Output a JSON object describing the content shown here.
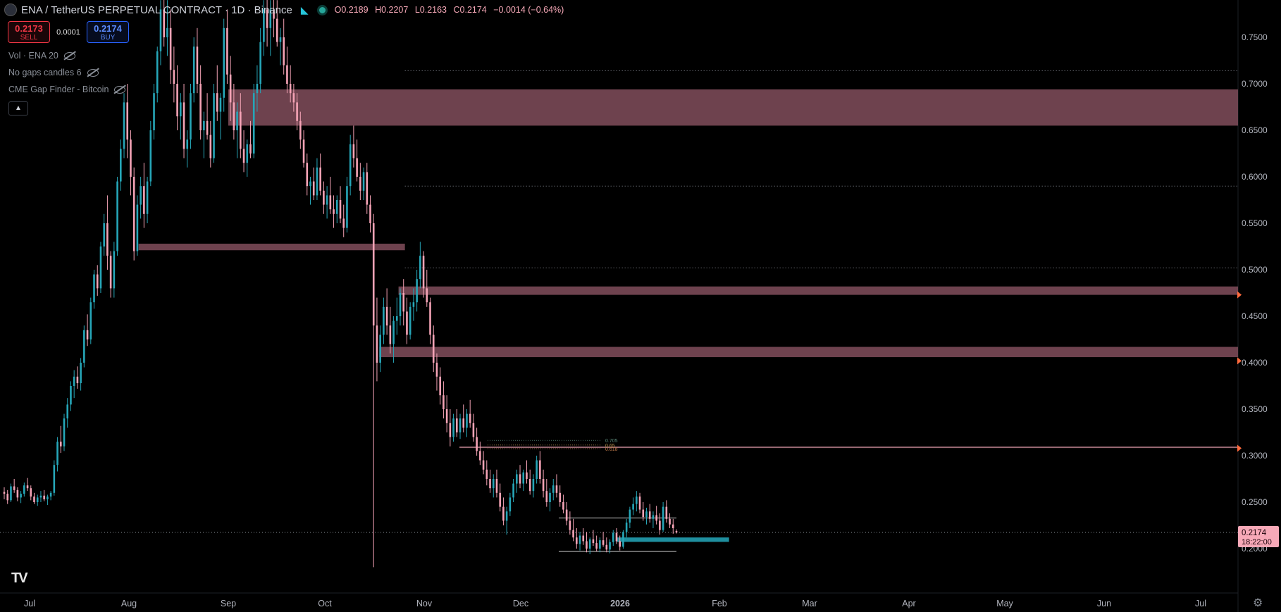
{
  "header": {
    "title": "ENA / TetherUS PERPETUAL CONTRACT · 1D · Binance",
    "ohlc": {
      "open": "O0.2189",
      "high": "H0.2207",
      "low": "L0.2163",
      "close": "C0.2174",
      "change": "−0.0014 (−0.64%)"
    }
  },
  "trade": {
    "sell_price": "0.2173",
    "sell_label": "SELL",
    "spread": "0.0001",
    "buy_price": "0.2174",
    "buy_label": "BUY"
  },
  "indicators": [
    "Vol · ENA 20",
    "No gaps candles 6",
    "CME Gap Finder - Bitcoin"
  ],
  "price_label": {
    "price": "0.2174",
    "countdown": "18:22:00"
  },
  "colors": {
    "up": "#26a6b8",
    "down": "#f5a3b6",
    "zone": "#7a4956",
    "teal_zone": "#1f8f9f",
    "orange": "#ff6a3d"
  },
  "chart_data": {
    "type": "candlestick",
    "x_labels": [
      "Jul",
      "Aug",
      "Sep",
      "Oct",
      "Nov",
      "Dec",
      "2026",
      "Feb",
      "Mar",
      "Apr",
      "May",
      "Jun",
      "Jul"
    ],
    "y_ticks": [
      "0.7500",
      "0.7000",
      "0.6500",
      "0.6000",
      "0.5500",
      "0.5000",
      "0.4500",
      "0.4000",
      "0.3500",
      "0.3000",
      "0.2500",
      "0.2000"
    ],
    "ylim": [
      0.18,
      0.79
    ],
    "zones": [
      {
        "from": "Sep 1",
        "to": "Jul 31",
        "low": 0.655,
        "high": 0.694
      },
      {
        "from": "Aug 4",
        "to": "Oct 26",
        "low": 0.521,
        "high": 0.528
      },
      {
        "from": "Oct 24",
        "to": "Jul 31",
        "low": 0.473,
        "high": 0.482
      },
      {
        "from": "Oct 18",
        "to": "Jul 31",
        "low": 0.406,
        "high": 0.417
      }
    ],
    "teal_zone": {
      "from": "Dec 31",
      "to": "Feb 4",
      "low": 0.208,
      "high": 0.212
    },
    "levels": [
      {
        "value": 0.714,
        "from": "Oct 26",
        "style": "dotted"
      },
      {
        "value": 0.59,
        "from": "Oct 26",
        "style": "dotted"
      },
      {
        "value": 0.502,
        "from": "Oct 26",
        "style": "dotted"
      },
      {
        "value": 0.309,
        "from": "Nov 12",
        "style": "solid"
      },
      {
        "value": 0.2174,
        "from": "Jun 29",
        "style": "dotted-current"
      }
    ],
    "fib_labels": [
      "0.705",
      "0.65",
      "0.618"
    ],
    "candles_ohlc": [
      [
        0.261,
        0.266,
        0.253,
        0.259
      ],
      [
        0.259,
        0.263,
        0.248,
        0.252
      ],
      [
        0.252,
        0.27,
        0.25,
        0.267
      ],
      [
        0.267,
        0.275,
        0.26,
        0.263
      ],
      [
        0.263,
        0.266,
        0.251,
        0.255
      ],
      [
        0.255,
        0.262,
        0.249,
        0.259
      ],
      [
        0.259,
        0.271,
        0.256,
        0.268
      ],
      [
        0.268,
        0.276,
        0.262,
        0.265
      ],
      [
        0.265,
        0.268,
        0.252,
        0.256
      ],
      [
        0.256,
        0.26,
        0.248,
        0.25
      ],
      [
        0.25,
        0.258,
        0.246,
        0.255
      ],
      [
        0.255,
        0.262,
        0.25,
        0.257
      ],
      [
        0.257,
        0.263,
        0.251,
        0.253
      ],
      [
        0.253,
        0.258,
        0.247,
        0.256
      ],
      [
        0.256,
        0.262,
        0.252,
        0.26
      ],
      [
        0.26,
        0.295,
        0.257,
        0.29
      ],
      [
        0.29,
        0.32,
        0.283,
        0.315
      ],
      [
        0.315,
        0.332,
        0.303,
        0.31
      ],
      [
        0.31,
        0.345,
        0.305,
        0.34
      ],
      [
        0.34,
        0.362,
        0.33,
        0.355
      ],
      [
        0.355,
        0.38,
        0.348,
        0.375
      ],
      [
        0.375,
        0.392,
        0.362,
        0.385
      ],
      [
        0.385,
        0.396,
        0.372,
        0.378
      ],
      [
        0.378,
        0.405,
        0.37,
        0.4
      ],
      [
        0.4,
        0.44,
        0.395,
        0.435
      ],
      [
        0.435,
        0.452,
        0.418,
        0.425
      ],
      [
        0.425,
        0.47,
        0.42,
        0.465
      ],
      [
        0.465,
        0.5,
        0.458,
        0.495
      ],
      [
        0.495,
        0.505,
        0.472,
        0.48
      ],
      [
        0.48,
        0.53,
        0.475,
        0.525
      ],
      [
        0.525,
        0.56,
        0.515,
        0.55
      ],
      [
        0.55,
        0.58,
        0.5,
        0.515
      ],
      [
        0.515,
        0.52,
        0.47,
        0.48
      ],
      [
        0.48,
        0.53,
        0.47,
        0.52
      ],
      [
        0.52,
        0.6,
        0.515,
        0.595
      ],
      [
        0.595,
        0.64,
        0.585,
        0.63
      ],
      [
        0.63,
        0.69,
        0.62,
        0.68
      ],
      [
        0.68,
        0.7,
        0.62,
        0.64
      ],
      [
        0.64,
        0.65,
        0.58,
        0.6
      ],
      [
        0.6,
        0.61,
        0.51,
        0.52
      ],
      [
        0.52,
        0.58,
        0.515,
        0.57
      ],
      [
        0.57,
        0.6,
        0.555,
        0.59
      ],
      [
        0.59,
        0.615,
        0.545,
        0.56
      ],
      [
        0.56,
        0.6,
        0.55,
        0.595
      ],
      [
        0.595,
        0.66,
        0.59,
        0.65
      ],
      [
        0.65,
        0.7,
        0.64,
        0.69
      ],
      [
        0.69,
        0.74,
        0.68,
        0.735
      ],
      [
        0.735,
        0.79,
        0.72,
        0.78
      ],
      [
        0.78,
        0.8,
        0.74,
        0.75
      ],
      [
        0.75,
        0.79,
        0.73,
        0.76
      ],
      [
        0.76,
        0.78,
        0.7,
        0.715
      ],
      [
        0.715,
        0.74,
        0.68,
        0.7
      ],
      [
        0.7,
        0.72,
        0.65,
        0.665
      ],
      [
        0.665,
        0.69,
        0.64,
        0.68
      ],
      [
        0.68,
        0.7,
        0.62,
        0.63
      ],
      [
        0.63,
        0.65,
        0.61,
        0.64
      ],
      [
        0.64,
        0.7,
        0.63,
        0.69
      ],
      [
        0.69,
        0.75,
        0.68,
        0.74
      ],
      [
        0.74,
        0.76,
        0.69,
        0.7
      ],
      [
        0.7,
        0.72,
        0.64,
        0.65
      ],
      [
        0.65,
        0.67,
        0.62,
        0.66
      ],
      [
        0.66,
        0.69,
        0.64,
        0.645
      ],
      [
        0.645,
        0.66,
        0.61,
        0.62
      ],
      [
        0.62,
        0.7,
        0.615,
        0.69
      ],
      [
        0.69,
        0.72,
        0.66,
        0.67
      ],
      [
        0.67,
        0.69,
        0.64,
        0.685
      ],
      [
        0.685,
        0.77,
        0.67,
        0.76
      ],
      [
        0.76,
        0.78,
        0.7,
        0.71
      ],
      [
        0.71,
        0.73,
        0.66,
        0.68
      ],
      [
        0.68,
        0.7,
        0.64,
        0.65
      ],
      [
        0.65,
        0.68,
        0.62,
        0.67
      ],
      [
        0.67,
        0.69,
        0.62,
        0.63
      ],
      [
        0.63,
        0.65,
        0.605,
        0.615
      ],
      [
        0.615,
        0.64,
        0.6,
        0.635
      ],
      [
        0.635,
        0.66,
        0.62,
        0.625
      ],
      [
        0.625,
        0.7,
        0.62,
        0.69
      ],
      [
        0.69,
        0.72,
        0.67,
        0.7
      ],
      [
        0.7,
        0.76,
        0.69,
        0.745
      ],
      [
        0.745,
        0.79,
        0.73,
        0.78
      ],
      [
        0.78,
        0.8,
        0.74,
        0.76
      ],
      [
        0.76,
        0.79,
        0.73,
        0.78
      ],
      [
        0.78,
        0.8,
        0.75,
        0.77
      ],
      [
        0.77,
        0.79,
        0.74,
        0.745
      ],
      [
        0.745,
        0.76,
        0.72,
        0.75
      ],
      [
        0.75,
        0.77,
        0.71,
        0.72
      ],
      [
        0.72,
        0.74,
        0.69,
        0.7
      ],
      [
        0.7,
        0.72,
        0.68,
        0.69
      ],
      [
        0.69,
        0.7,
        0.67,
        0.68
      ],
      [
        0.68,
        0.69,
        0.65,
        0.66
      ],
      [
        0.66,
        0.67,
        0.63,
        0.64
      ],
      [
        0.64,
        0.65,
        0.61,
        0.615
      ],
      [
        0.615,
        0.625,
        0.58,
        0.59
      ],
      [
        0.59,
        0.6,
        0.57,
        0.595
      ],
      [
        0.595,
        0.61,
        0.575,
        0.58
      ],
      [
        0.58,
        0.62,
        0.575,
        0.61
      ],
      [
        0.61,
        0.625,
        0.58,
        0.585
      ],
      [
        0.585,
        0.595,
        0.56,
        0.57
      ],
      [
        0.57,
        0.59,
        0.555,
        0.58
      ],
      [
        0.58,
        0.6,
        0.56,
        0.565
      ],
      [
        0.565,
        0.58,
        0.545,
        0.56
      ],
      [
        0.56,
        0.58,
        0.55,
        0.575
      ],
      [
        0.575,
        0.59,
        0.55,
        0.555
      ],
      [
        0.555,
        0.57,
        0.535,
        0.545
      ],
      [
        0.545,
        0.6,
        0.54,
        0.59
      ],
      [
        0.59,
        0.645,
        0.58,
        0.635
      ],
      [
        0.635,
        0.655,
        0.61,
        0.62
      ],
      [
        0.62,
        0.64,
        0.595,
        0.6
      ],
      [
        0.6,
        0.615,
        0.575,
        0.585
      ],
      [
        0.585,
        0.61,
        0.575,
        0.605
      ],
      [
        0.605,
        0.615,
        0.56,
        0.57
      ],
      [
        0.57,
        0.58,
        0.54,
        0.55
      ],
      [
        0.55,
        0.56,
        0.18,
        0.44
      ],
      [
        0.44,
        0.47,
        0.38,
        0.4
      ],
      [
        0.4,
        0.44,
        0.39,
        0.43
      ],
      [
        0.43,
        0.47,
        0.42,
        0.46
      ],
      [
        0.46,
        0.48,
        0.43,
        0.44
      ],
      [
        0.44,
        0.46,
        0.41,
        0.42
      ],
      [
        0.42,
        0.45,
        0.4,
        0.445
      ],
      [
        0.445,
        0.47,
        0.43,
        0.45
      ],
      [
        0.45,
        0.48,
        0.44,
        0.475
      ],
      [
        0.475,
        0.49,
        0.44,
        0.455
      ],
      [
        0.455,
        0.47,
        0.42,
        0.43
      ],
      [
        0.43,
        0.465,
        0.425,
        0.46
      ],
      [
        0.46,
        0.48,
        0.445,
        0.465
      ],
      [
        0.465,
        0.5,
        0.455,
        0.49
      ],
      [
        0.49,
        0.53,
        0.48,
        0.515
      ],
      [
        0.515,
        0.52,
        0.47,
        0.48
      ],
      [
        0.48,
        0.5,
        0.46,
        0.465
      ],
      [
        0.465,
        0.47,
        0.42,
        0.43
      ],
      [
        0.43,
        0.44,
        0.39,
        0.4
      ],
      [
        0.4,
        0.41,
        0.37,
        0.385
      ],
      [
        0.385,
        0.395,
        0.355,
        0.365
      ],
      [
        0.365,
        0.38,
        0.34,
        0.35
      ],
      [
        0.35,
        0.365,
        0.325,
        0.335
      ],
      [
        0.335,
        0.35,
        0.31,
        0.32
      ],
      [
        0.32,
        0.345,
        0.315,
        0.34
      ],
      [
        0.34,
        0.35,
        0.32,
        0.325
      ],
      [
        0.325,
        0.345,
        0.318,
        0.34
      ],
      [
        0.34,
        0.355,
        0.325,
        0.33
      ],
      [
        0.33,
        0.35,
        0.32,
        0.345
      ],
      [
        0.345,
        0.36,
        0.33,
        0.335
      ],
      [
        0.335,
        0.345,
        0.315,
        0.32
      ],
      [
        0.32,
        0.33,
        0.3,
        0.305
      ],
      [
        0.305,
        0.315,
        0.29,
        0.295
      ],
      [
        0.295,
        0.305,
        0.28,
        0.285
      ],
      [
        0.285,
        0.295,
        0.268,
        0.275
      ],
      [
        0.275,
        0.285,
        0.26,
        0.265
      ],
      [
        0.265,
        0.28,
        0.255,
        0.275
      ],
      [
        0.275,
        0.285,
        0.255,
        0.26
      ],
      [
        0.26,
        0.27,
        0.24,
        0.245
      ],
      [
        0.245,
        0.255,
        0.225,
        0.23
      ],
      [
        0.23,
        0.245,
        0.215,
        0.24
      ],
      [
        0.24,
        0.26,
        0.235,
        0.255
      ],
      [
        0.255,
        0.275,
        0.25,
        0.27
      ],
      [
        0.27,
        0.285,
        0.26,
        0.28
      ],
      [
        0.28,
        0.29,
        0.265,
        0.27
      ],
      [
        0.27,
        0.285,
        0.262,
        0.282
      ],
      [
        0.282,
        0.295,
        0.27,
        0.275
      ],
      [
        0.275,
        0.285,
        0.258,
        0.262
      ],
      [
        0.262,
        0.28,
        0.255,
        0.275
      ],
      [
        0.275,
        0.3,
        0.27,
        0.295
      ],
      [
        0.295,
        0.305,
        0.27,
        0.275
      ],
      [
        0.275,
        0.285,
        0.255,
        0.262
      ],
      [
        0.262,
        0.275,
        0.245,
        0.25
      ],
      [
        0.25,
        0.265,
        0.24,
        0.26
      ],
      [
        0.26,
        0.275,
        0.252,
        0.268
      ],
      [
        0.268,
        0.28,
        0.255,
        0.26
      ],
      [
        0.26,
        0.268,
        0.245,
        0.25
      ],
      [
        0.25,
        0.258,
        0.238,
        0.242
      ],
      [
        0.242,
        0.25,
        0.225,
        0.23
      ],
      [
        0.23,
        0.24,
        0.215,
        0.22
      ],
      [
        0.22,
        0.232,
        0.208,
        0.212
      ],
      [
        0.212,
        0.222,
        0.2,
        0.205
      ],
      [
        0.205,
        0.218,
        0.198,
        0.214
      ],
      [
        0.214,
        0.222,
        0.204,
        0.208
      ],
      [
        0.208,
        0.218,
        0.196,
        0.2
      ],
      [
        0.2,
        0.212,
        0.194,
        0.21
      ],
      [
        0.21,
        0.22,
        0.203,
        0.206
      ],
      [
        0.206,
        0.214,
        0.197,
        0.2
      ],
      [
        0.2,
        0.212,
        0.196,
        0.209
      ],
      [
        0.209,
        0.218,
        0.202,
        0.204
      ],
      [
        0.204,
        0.212,
        0.196,
        0.199
      ],
      [
        0.199,
        0.21,
        0.195,
        0.207
      ],
      [
        0.207,
        0.22,
        0.203,
        0.217
      ],
      [
        0.217,
        0.222,
        0.205,
        0.208
      ],
      [
        0.208,
        0.214,
        0.198,
        0.202
      ],
      [
        0.202,
        0.22,
        0.2,
        0.218
      ],
      [
        0.218,
        0.232,
        0.212,
        0.228
      ],
      [
        0.228,
        0.245,
        0.222,
        0.242
      ],
      [
        0.242,
        0.255,
        0.236,
        0.248
      ],
      [
        0.248,
        0.262,
        0.24,
        0.256
      ],
      [
        0.256,
        0.26,
        0.238,
        0.242
      ],
      [
        0.242,
        0.25,
        0.23,
        0.234
      ],
      [
        0.234,
        0.244,
        0.226,
        0.24
      ],
      [
        0.24,
        0.248,
        0.228,
        0.232
      ],
      [
        0.232,
        0.24,
        0.222,
        0.236
      ],
      [
        0.236,
        0.246,
        0.226,
        0.23
      ],
      [
        0.23,
        0.238,
        0.215,
        0.22
      ],
      [
        0.22,
        0.25,
        0.218,
        0.245
      ],
      [
        0.245,
        0.252,
        0.228,
        0.232
      ],
      [
        0.232,
        0.238,
        0.222,
        0.226
      ],
      [
        0.226,
        0.232,
        0.216,
        0.222
      ],
      [
        0.2189,
        0.2207,
        0.2163,
        0.2174
      ]
    ]
  }
}
